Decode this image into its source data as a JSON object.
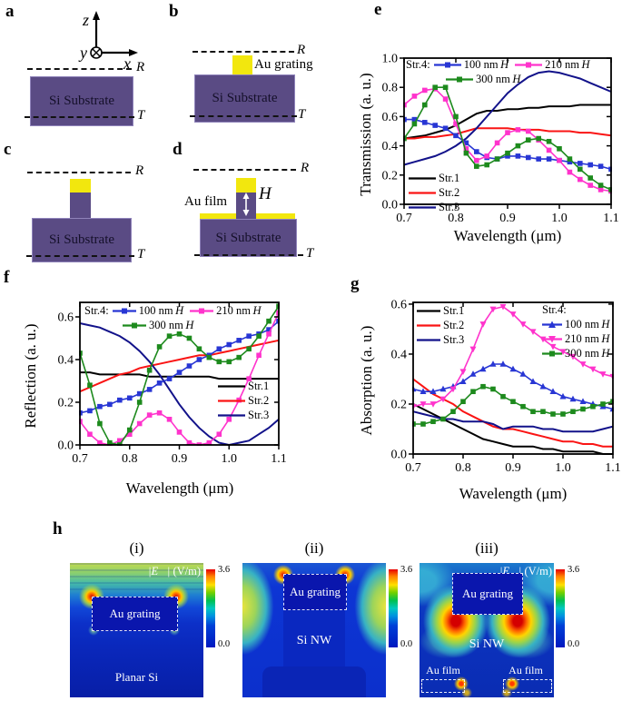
{
  "panel_labels": {
    "a": "a",
    "b": "b",
    "c": "c",
    "d": "d",
    "e": "e",
    "f": "f",
    "g": "g",
    "h": "h"
  },
  "h_italic": "H",
  "schematics": {
    "axes": {
      "z": "z",
      "y": "y",
      "x": "x"
    },
    "r": "R",
    "t": "T",
    "si_substrate": "Si Substrate",
    "au_grating": "Au grating",
    "au_film": "Au film",
    "height": "H"
  },
  "colors": {
    "si_purple": "#5a4b84",
    "au_yellow": "#f2e70e",
    "str1": "#000000",
    "str2": "#fa1414",
    "str3": "#12128a",
    "h100": "#2836d4",
    "h210": "#ff33cc",
    "h300": "#1d8a1d"
  },
  "chart_data": [
    {
      "id": "chart-e",
      "type": "line",
      "legend_title": "Str.4:",
      "xlabel": "Wavelength (μm)",
      "ylabel": "Transmission (a. u.)",
      "xlim": [
        0.7,
        1.1
      ],
      "ylim": [
        0,
        1.0
      ],
      "xticks": [
        0.7,
        0.8,
        0.9,
        1.0,
        1.1
      ],
      "yticks": [
        0.0,
        0.2,
        0.4,
        0.6,
        0.8,
        1.0
      ],
      "x": [
        0.7,
        0.72,
        0.74,
        0.76,
        0.78,
        0.8,
        0.82,
        0.84,
        0.86,
        0.88,
        0.9,
        0.92,
        0.94,
        0.96,
        0.98,
        1.0,
        1.02,
        1.04,
        1.06,
        1.08,
        1.1
      ],
      "series": [
        {
          "name": "Str.1",
          "color": "#000000",
          "marker": "none",
          "values": [
            0.45,
            0.46,
            0.47,
            0.49,
            0.51,
            0.54,
            0.58,
            0.62,
            0.64,
            0.64,
            0.65,
            0.65,
            0.66,
            0.66,
            0.67,
            0.67,
            0.67,
            0.68,
            0.68,
            0.68,
            0.68
          ]
        },
        {
          "name": "Str.2",
          "color": "#fa1414",
          "marker": "none",
          "values": [
            0.45,
            0.45,
            0.46,
            0.46,
            0.47,
            0.48,
            0.5,
            0.52,
            0.52,
            0.52,
            0.52,
            0.51,
            0.51,
            0.51,
            0.5,
            0.5,
            0.5,
            0.49,
            0.49,
            0.48,
            0.47
          ]
        },
        {
          "name": "Str.3",
          "color": "#12128a",
          "marker": "none",
          "values": [
            0.27,
            0.29,
            0.31,
            0.33,
            0.36,
            0.4,
            0.45,
            0.52,
            0.6,
            0.68,
            0.76,
            0.82,
            0.87,
            0.9,
            0.91,
            0.9,
            0.88,
            0.86,
            0.83,
            0.8,
            0.77
          ]
        },
        {
          "name": "100 nm",
          "color": "#2836d4",
          "marker": "square",
          "values": [
            0.58,
            0.58,
            0.56,
            0.54,
            0.52,
            0.47,
            0.42,
            0.36,
            0.32,
            0.31,
            0.33,
            0.33,
            0.32,
            0.31,
            0.31,
            0.3,
            0.29,
            0.28,
            0.27,
            0.26,
            0.24
          ]
        },
        {
          "name": "210 nm",
          "color": "#ff33cc",
          "marker": "square",
          "values": [
            0.68,
            0.74,
            0.78,
            0.79,
            0.72,
            0.55,
            0.38,
            0.3,
            0.33,
            0.42,
            0.49,
            0.51,
            0.5,
            0.44,
            0.37,
            0.3,
            0.22,
            0.17,
            0.13,
            0.1,
            0.09
          ]
        },
        {
          "name": "300 nm",
          "color": "#1d8a1d",
          "marker": "square",
          "values": [
            0.45,
            0.55,
            0.68,
            0.8,
            0.8,
            0.6,
            0.35,
            0.26,
            0.27,
            0.31,
            0.35,
            0.4,
            0.44,
            0.45,
            0.43,
            0.38,
            0.31,
            0.24,
            0.18,
            0.13,
            0.1
          ]
        }
      ]
    },
    {
      "id": "chart-f",
      "type": "line",
      "legend_title": "Str.4:",
      "xlabel": "Wavelength (μm)",
      "ylabel": "Reflection (a. u.)",
      "xlim": [
        0.7,
        1.1
      ],
      "ylim": [
        0,
        0.668
      ],
      "xticks": [
        0.7,
        0.8,
        0.9,
        1.0,
        1.1
      ],
      "yticks": [
        0.0,
        0.2,
        0.4,
        0.6
      ],
      "x": [
        0.7,
        0.72,
        0.74,
        0.76,
        0.78,
        0.8,
        0.82,
        0.84,
        0.86,
        0.88,
        0.9,
        0.92,
        0.94,
        0.96,
        0.98,
        1.0,
        1.02,
        1.04,
        1.06,
        1.08,
        1.1
      ],
      "series": [
        {
          "name": "Str.1",
          "color": "#000000",
          "marker": "none",
          "values": [
            0.34,
            0.34,
            0.33,
            0.33,
            0.33,
            0.33,
            0.33,
            0.32,
            0.32,
            0.32,
            0.32,
            0.32,
            0.32,
            0.32,
            0.31,
            0.31,
            0.31,
            0.31,
            0.31,
            0.31,
            0.31
          ]
        },
        {
          "name": "Str.2",
          "color": "#fa1414",
          "marker": "none",
          "values": [
            0.25,
            0.27,
            0.29,
            0.31,
            0.33,
            0.34,
            0.36,
            0.37,
            0.38,
            0.39,
            0.4,
            0.41,
            0.42,
            0.42,
            0.43,
            0.44,
            0.45,
            0.46,
            0.47,
            0.48,
            0.49
          ]
        },
        {
          "name": "Str.3",
          "color": "#12128a",
          "marker": "none",
          "values": [
            0.57,
            0.56,
            0.55,
            0.53,
            0.51,
            0.48,
            0.44,
            0.39,
            0.33,
            0.26,
            0.19,
            0.13,
            0.08,
            0.04,
            0.01,
            0.0,
            0.01,
            0.02,
            0.05,
            0.08,
            0.12
          ]
        },
        {
          "name": "100 nm",
          "color": "#2836d4",
          "marker": "square",
          "values": [
            0.15,
            0.16,
            0.18,
            0.19,
            0.21,
            0.22,
            0.24,
            0.26,
            0.29,
            0.31,
            0.34,
            0.37,
            0.4,
            0.42,
            0.45,
            0.47,
            0.49,
            0.51,
            0.52,
            0.54,
            0.58
          ]
        },
        {
          "name": "210 nm",
          "color": "#ff33cc",
          "marker": "square",
          "values": [
            0.11,
            0.05,
            0.01,
            0.0,
            0.02,
            0.05,
            0.1,
            0.14,
            0.15,
            0.12,
            0.06,
            0.01,
            0.0,
            0.01,
            0.05,
            0.12,
            0.21,
            0.31,
            0.42,
            0.52,
            0.62
          ]
        },
        {
          "name": "300 nm",
          "color": "#1d8a1d",
          "marker": "square",
          "values": [
            0.43,
            0.28,
            0.1,
            0.01,
            0.0,
            0.07,
            0.2,
            0.35,
            0.46,
            0.51,
            0.52,
            0.5,
            0.45,
            0.41,
            0.39,
            0.39,
            0.41,
            0.45,
            0.51,
            0.58,
            0.65
          ]
        }
      ]
    },
    {
      "id": "chart-g",
      "type": "line",
      "legend_title": "Str.4:",
      "xlabel": "Wavelength (μm)",
      "ylabel": "Absorption (a. u.)",
      "xlim": [
        0.7,
        1.1
      ],
      "ylim": [
        0,
        0.607
      ],
      "xticks": [
        0.7,
        0.8,
        0.9,
        1.0,
        1.1
      ],
      "yticks": [
        0.0,
        0.2,
        0.4,
        0.6
      ],
      "x": [
        0.7,
        0.72,
        0.74,
        0.76,
        0.78,
        0.8,
        0.82,
        0.84,
        0.86,
        0.88,
        0.9,
        0.92,
        0.94,
        0.96,
        0.98,
        1.0,
        1.02,
        1.04,
        1.06,
        1.08,
        1.1
      ],
      "series": [
        {
          "name": "Str.1",
          "color": "#000000",
          "marker": "none",
          "values": [
            0.2,
            0.18,
            0.16,
            0.14,
            0.12,
            0.1,
            0.08,
            0.06,
            0.05,
            0.04,
            0.03,
            0.03,
            0.03,
            0.02,
            0.02,
            0.01,
            0.01,
            0.01,
            0.01,
            0.0,
            0.0
          ]
        },
        {
          "name": "Str.2",
          "color": "#fa1414",
          "marker": "none",
          "values": [
            0.3,
            0.27,
            0.24,
            0.22,
            0.2,
            0.17,
            0.15,
            0.13,
            0.11,
            0.1,
            0.1,
            0.09,
            0.08,
            0.07,
            0.06,
            0.05,
            0.05,
            0.04,
            0.04,
            0.03,
            0.03
          ]
        },
        {
          "name": "Str.3",
          "color": "#12128a",
          "marker": "none",
          "values": [
            0.17,
            0.16,
            0.15,
            0.14,
            0.14,
            0.13,
            0.13,
            0.13,
            0.12,
            0.1,
            0.11,
            0.11,
            0.11,
            0.1,
            0.1,
            0.09,
            0.09,
            0.09,
            0.09,
            0.1,
            0.11
          ]
        },
        {
          "name": "100 nm",
          "color": "#2836d4",
          "marker": "triangle-up",
          "values": [
            0.26,
            0.25,
            0.25,
            0.26,
            0.27,
            0.29,
            0.32,
            0.34,
            0.36,
            0.36,
            0.34,
            0.32,
            0.29,
            0.27,
            0.25,
            0.23,
            0.22,
            0.21,
            0.2,
            0.19,
            0.18
          ]
        },
        {
          "name": "210 nm",
          "color": "#ff33cc",
          "marker": "triangle-down",
          "values": [
            0.19,
            0.2,
            0.2,
            0.22,
            0.26,
            0.33,
            0.42,
            0.52,
            0.58,
            0.59,
            0.56,
            0.52,
            0.49,
            0.46,
            0.43,
            0.41,
            0.39,
            0.36,
            0.34,
            0.32,
            0.31
          ]
        },
        {
          "name": "300 nm",
          "color": "#1d8a1d",
          "marker": "square",
          "values": [
            0.12,
            0.12,
            0.13,
            0.14,
            0.17,
            0.21,
            0.25,
            0.27,
            0.26,
            0.23,
            0.21,
            0.19,
            0.17,
            0.17,
            0.16,
            0.16,
            0.17,
            0.18,
            0.19,
            0.2,
            0.21
          ]
        }
      ]
    }
  ],
  "field_maps": {
    "e_sym": "|E⃗|",
    "e_unit": " (V/m)",
    "colorbar_max": "3.6",
    "colorbar_min": "0.0",
    "maps": [
      {
        "title": "(i)",
        "grating": "Au grating",
        "body": "Planar Si"
      },
      {
        "title": "(ii)",
        "grating": "Au grating",
        "body": "Si NW"
      },
      {
        "title": "(iii)",
        "grating": "Au grating",
        "body": "Si NW",
        "film": "Au film"
      }
    ]
  }
}
